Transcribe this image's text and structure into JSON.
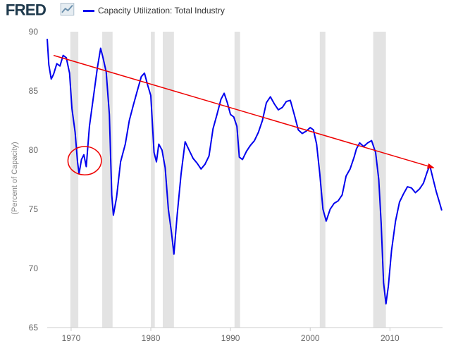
{
  "logo": {
    "text": "FRED"
  },
  "chart_data": {
    "type": "line",
    "title": "",
    "xlabel": "",
    "ylabel": "(Percent of Capacity)",
    "xlim": [
      1967.0,
      2016.6
    ],
    "ylim": [
      65,
      90
    ],
    "grid": false,
    "legend_position": "top",
    "x_ticks": [
      "1970",
      "1980",
      "1990",
      "2000",
      "2010"
    ],
    "y_ticks": [
      "65",
      "70",
      "75",
      "80",
      "85",
      "90"
    ],
    "series": [
      {
        "name": "Capacity Utilization: Total Industry",
        "color": "#0000ee",
        "x": [
          1967.0,
          1967.2,
          1967.5,
          1967.8,
          1968.2,
          1968.6,
          1969.0,
          1969.4,
          1969.8,
          1970.1,
          1970.5,
          1970.8,
          1971.0,
          1971.3,
          1971.6,
          1971.9,
          1972.3,
          1972.8,
          1973.3,
          1973.7,
          1974.0,
          1974.4,
          1974.8,
          1975.1,
          1975.3,
          1975.7,
          1976.2,
          1976.8,
          1977.3,
          1977.8,
          1978.3,
          1978.8,
          1979.2,
          1979.6,
          1980.0,
          1980.4,
          1980.7,
          1981.0,
          1981.4,
          1981.8,
          1982.2,
          1982.6,
          1982.9,
          1983.3,
          1983.8,
          1984.3,
          1984.8,
          1985.3,
          1985.8,
          1986.3,
          1986.8,
          1987.3,
          1987.8,
          1988.3,
          1988.8,
          1989.2,
          1989.6,
          1990.0,
          1990.4,
          1990.8,
          1991.1,
          1991.5,
          1992.0,
          1992.5,
          1993.0,
          1993.5,
          1994.0,
          1994.5,
          1995.0,
          1995.5,
          1996.0,
          1996.5,
          1997.0,
          1997.5,
          1998.0,
          1998.5,
          1999.0,
          1999.5,
          2000.0,
          2000.4,
          2000.8,
          2001.2,
          2001.6,
          2002.0,
          2002.5,
          2003.0,
          2003.5,
          2004.0,
          2004.5,
          2005.0,
          2005.5,
          2005.8,
          2006.2,
          2006.7,
          2007.2,
          2007.7,
          2008.2,
          2008.6,
          2008.9,
          2009.2,
          2009.5,
          2009.8,
          2010.2,
          2010.7,
          2011.2,
          2011.7,
          2012.2,
          2012.7,
          2013.2,
          2013.7,
          2014.2,
          2014.7,
          2015.0,
          2015.4,
          2015.8,
          2016.2,
          2016.5
        ],
        "values": [
          89.4,
          87.2,
          86.0,
          86.4,
          87.3,
          87.1,
          88.0,
          87.8,
          86.5,
          83.5,
          81.5,
          79.0,
          78.0,
          79.2,
          79.6,
          78.6,
          82.0,
          84.5,
          87.0,
          88.6,
          87.8,
          86.6,
          83.0,
          76.2,
          74.5,
          76.0,
          79.0,
          80.5,
          82.5,
          83.8,
          85.0,
          86.2,
          86.5,
          85.5,
          84.6,
          79.8,
          79.0,
          80.5,
          80.0,
          78.5,
          75.0,
          73.0,
          71.2,
          74.5,
          78.0,
          80.7,
          80.0,
          79.3,
          78.9,
          78.4,
          78.8,
          79.5,
          81.8,
          83.0,
          84.3,
          84.8,
          84.0,
          83.0,
          82.8,
          82.0,
          79.4,
          79.2,
          79.9,
          80.4,
          80.8,
          81.5,
          82.5,
          84.0,
          84.5,
          83.9,
          83.4,
          83.6,
          84.1,
          84.2,
          83.0,
          81.7,
          81.4,
          81.6,
          81.9,
          81.7,
          80.5,
          78.0,
          75.0,
          74.0,
          75.0,
          75.5,
          75.7,
          76.2,
          77.8,
          78.4,
          79.4,
          80.1,
          80.6,
          80.3,
          80.6,
          80.8,
          79.8,
          77.5,
          73.8,
          68.8,
          67.0,
          68.5,
          71.5,
          74.0,
          75.6,
          76.3,
          76.9,
          76.8,
          76.4,
          76.7,
          77.2,
          78.2,
          78.7,
          77.6,
          76.5,
          75.6,
          74.9
        ]
      }
    ],
    "recessions": [
      [
        1969.9,
        1970.9
      ],
      [
        1973.9,
        1975.2
      ],
      [
        1980.0,
        1980.5
      ],
      [
        1981.5,
        1982.9
      ],
      [
        1990.5,
        1991.2
      ],
      [
        2001.2,
        2001.9
      ],
      [
        2007.9,
        2009.5
      ]
    ],
    "annotations": {
      "trend_arrow": {
        "from": [
          1967.8,
          88.0
        ],
        "to": [
          2015.5,
          78.5
        ],
        "color": "#ee0000"
      },
      "circle": {
        "center": [
          1971.7,
          79.1
        ],
        "rx": 2.1,
        "ry": 1.2,
        "color": "#ee0000"
      }
    }
  }
}
